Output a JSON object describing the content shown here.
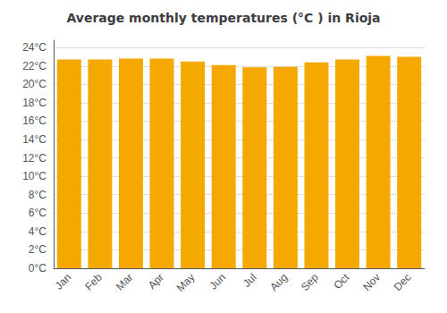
{
  "chart_data": {
    "type": "bar",
    "title": "Average monthly temperatures (°C ) in Rioja",
    "categories": [
      "Jan",
      "Feb",
      "Mar",
      "Apr",
      "May",
      "Jun",
      "Jul",
      "Aug",
      "Sep",
      "Oct",
      "Nov",
      "Dec"
    ],
    "values": [
      22.7,
      22.7,
      22.8,
      22.8,
      22.5,
      22.1,
      21.85,
      21.9,
      22.4,
      22.7,
      23.1,
      23.0
    ],
    "color": "#F5A800",
    "ylim": [
      0,
      24.8
    ],
    "yticks": [
      {
        "value": 0,
        "label": "0°C"
      },
      {
        "value": 2,
        "label": "2°C"
      },
      {
        "value": 4,
        "label": "4°C"
      },
      {
        "value": 6,
        "label": "6°C"
      },
      {
        "value": 8,
        "label": "8°C"
      },
      {
        "value": 10,
        "label": "10°C"
      },
      {
        "value": 12,
        "label": "12°C"
      },
      {
        "value": 14,
        "label": "14°C"
      },
      {
        "value": 16,
        "label": "16°C"
      },
      {
        "value": 18,
        "label": "18°C"
      },
      {
        "value": 20,
        "label": "20°C"
      },
      {
        "value": 22,
        "label": "22°C"
      },
      {
        "value": 24,
        "label": "24°C"
      }
    ],
    "grid": true
  }
}
